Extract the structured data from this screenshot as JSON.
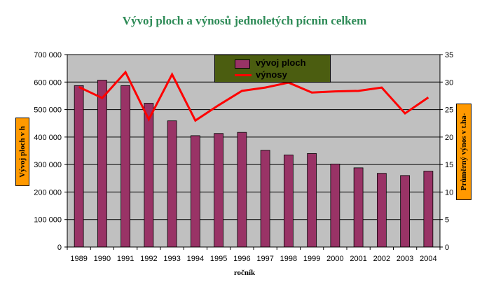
{
  "title": "Vývoj ploch a výnosů jednoletých pícnin celkem",
  "chart_data": {
    "type": "bar",
    "title": "Vývoj ploch a výnosů jednoletých pícnin celkem",
    "xlabel": "ročník",
    "ylabel_left": "Vývoj ploch v h",
    "ylabel_right": "Průměrný výnos v t.ha-",
    "categories": [
      "1989",
      "1990",
      "1991",
      "1992",
      "1993",
      "1994",
      "1995",
      "1996",
      "1997",
      "1998",
      "1999",
      "2000",
      "2001",
      "2002",
      "2003",
      "2004"
    ],
    "y_left_ticks": [
      "0",
      "100 000",
      "200 000",
      "300 000",
      "400 000",
      "500 000",
      "600 000",
      "700 000"
    ],
    "y_right_ticks": [
      "0",
      "5",
      "10",
      "15",
      "20",
      "25",
      "30",
      "35"
    ],
    "ylim_left": [
      0,
      700000
    ],
    "ylim_right": [
      0,
      35
    ],
    "series": [
      {
        "name": "vývoj ploch",
        "type": "bar",
        "axis": "left",
        "color": "#993366",
        "values": [
          587000,
          607000,
          587000,
          523000,
          459000,
          405000,
          413000,
          417000,
          352000,
          335000,
          340000,
          302000,
          288000,
          268000,
          260000,
          276000
        ]
      },
      {
        "name": "výnosy",
        "type": "line",
        "axis": "right",
        "color": "#ff0000",
        "values": [
          29.1,
          27.1,
          31.8,
          23.2,
          31.4,
          23.0,
          25.8,
          28.4,
          29.0,
          29.9,
          28.1,
          28.3,
          28.4,
          29.0,
          24.3,
          27.2
        ]
      }
    ],
    "plot_background": "#c0c0c0",
    "grid": true,
    "legend_position": "top-center"
  }
}
